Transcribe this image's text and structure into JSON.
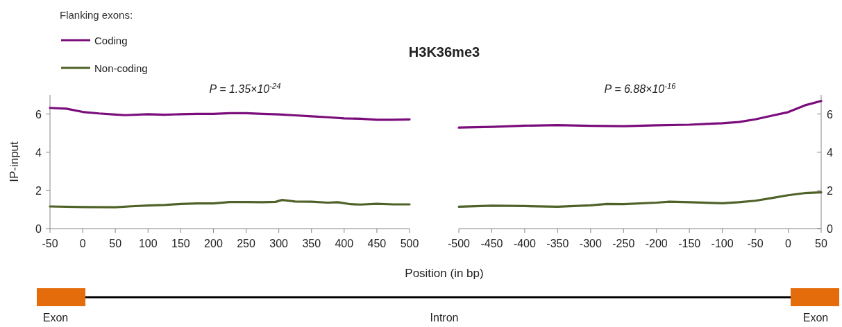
{
  "chart_data": [
    {
      "type": "line",
      "title": "H3K36me3",
      "xlabel": "Position (in bp)",
      "ylabel": "IP-input",
      "legend_title": "Flanking exons:",
      "legend": "top left",
      "grid": false,
      "annotations": [
        "P = 1.35×10$^{-24}$",
        "Exon",
        "Intron",
        "Exon"
      ],
      "xlim": [
        -50,
        500
      ],
      "xticks": [
        -50,
        0,
        50,
        100,
        150,
        200,
        250,
        300,
        350,
        400,
        450,
        500
      ],
      "ylim": [
        0,
        7
      ],
      "yticks": [
        0,
        2,
        4,
        6
      ],
      "series": [
        {
          "name": "Coding",
          "color": "#7b0c7b",
          "x": [
            -50,
            -25,
            0,
            25,
            50,
            65,
            100,
            125,
            150,
            175,
            200,
            225,
            250,
            275,
            300,
            325,
            350,
            375,
            400,
            425,
            450,
            475,
            500
          ],
          "values": [
            6.32,
            6.28,
            6.11,
            6.03,
            5.97,
            5.94,
            5.99,
            5.96,
            5.99,
            6.01,
            6.01,
            6.04,
            6.04,
            6.01,
            5.98,
            5.93,
            5.88,
            5.83,
            5.77,
            5.75,
            5.7,
            5.7,
            5.72
          ]
        },
        {
          "name": "Non-coding",
          "color": "#4f6228",
          "x": [
            -50,
            0,
            50,
            75,
            100,
            125,
            150,
            175,
            200,
            225,
            250,
            275,
            295,
            305,
            325,
            350,
            375,
            390,
            410,
            425,
            450,
            475,
            500
          ],
          "values": [
            1.16,
            1.13,
            1.12,
            1.17,
            1.21,
            1.24,
            1.29,
            1.32,
            1.32,
            1.39,
            1.39,
            1.38,
            1.4,
            1.5,
            1.42,
            1.41,
            1.36,
            1.38,
            1.28,
            1.26,
            1.3,
            1.27,
            1.27
          ]
        }
      ]
    },
    {
      "type": "line",
      "grid": false,
      "annotations": [
        "P = 6.88×10$^{-16}$"
      ],
      "xlim": [
        -500,
        50
      ],
      "xticks": [
        -500,
        -450,
        -400,
        -350,
        -300,
        -250,
        -200,
        -150,
        -100,
        -50,
        0,
        50
      ],
      "ylim": [
        0,
        7
      ],
      "yticks": [
        0,
        2,
        4,
        6
      ],
      "series": [
        {
          "color": "#7b0c7b",
          "x": [
            -500,
            -450,
            -400,
            -350,
            -300,
            -250,
            -200,
            -150,
            -100,
            -75,
            -50,
            -25,
            0,
            25,
            50
          ],
          "values": [
            5.29,
            5.33,
            5.39,
            5.42,
            5.38,
            5.36,
            5.41,
            5.44,
            5.52,
            5.58,
            5.72,
            5.91,
            6.1,
            6.45,
            6.68
          ]
        },
        {
          "color": "#4f6228",
          "x": [
            -500,
            -450,
            -400,
            -350,
            -300,
            -275,
            -250,
            -200,
            -180,
            -150,
            -100,
            -75,
            -50,
            -25,
            0,
            25,
            50
          ],
          "values": [
            1.15,
            1.2,
            1.18,
            1.15,
            1.22,
            1.29,
            1.28,
            1.36,
            1.41,
            1.38,
            1.33,
            1.38,
            1.46,
            1.6,
            1.75,
            1.86,
            1.9
          ]
        }
      ]
    }
  ]
}
